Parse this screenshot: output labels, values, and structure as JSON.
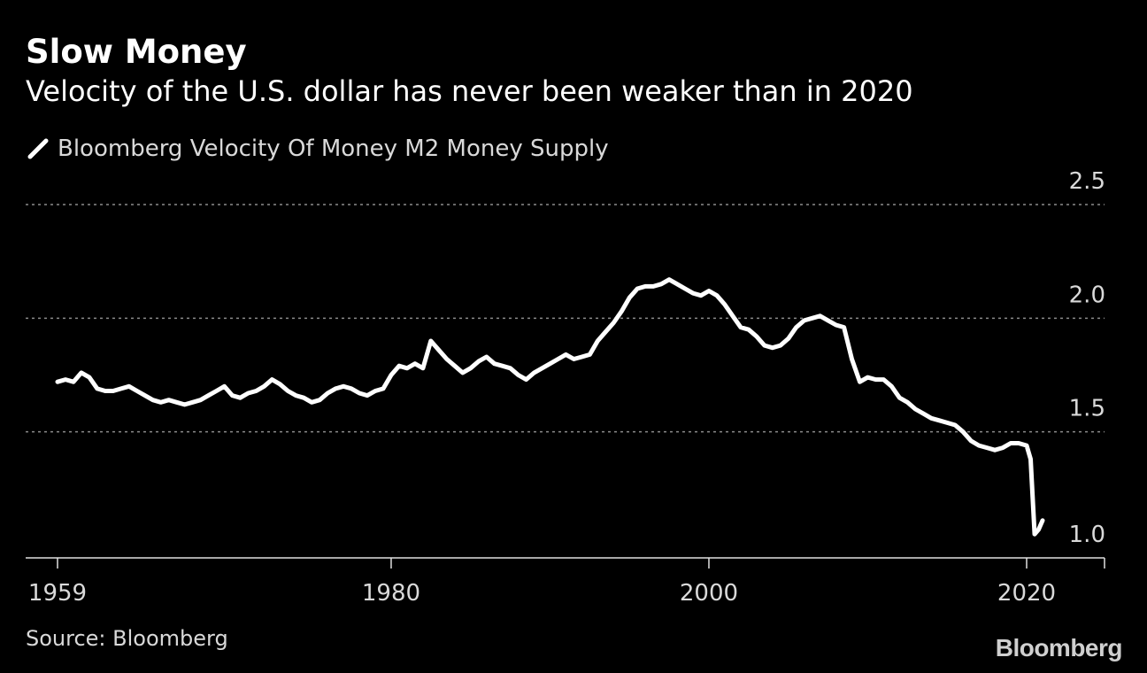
{
  "header": {
    "title": "Slow Money",
    "subtitle": "Velocity of the U.S. dollar has never been weaker than in 2020"
  },
  "legend": {
    "label": "Bloomberg Velocity Of Money M2 Money Supply"
  },
  "footer": {
    "source": "Source: Bloomberg",
    "brand": "Bloomberg"
  },
  "colors": {
    "background": "#000000",
    "line": "#ffffff",
    "grid": "#8c8c8c",
    "text": "#d9d9d9"
  },
  "chart_data": {
    "type": "line",
    "title": "Slow Money",
    "subtitle": "Velocity of the U.S. dollar has never been weaker than in 2020",
    "xlabel": "",
    "ylabel": "",
    "xlim": [
      1957,
      2025
    ],
    "ylim": [
      0.9,
      2.6
    ],
    "x_ticks": [
      {
        "value": 1959,
        "label": "1959"
      },
      {
        "value": 1980,
        "label": "1980"
      },
      {
        "value": 2000,
        "label": "2000"
      },
      {
        "value": 2020,
        "label": "2020"
      }
    ],
    "y_ticks": [
      {
        "value": 1.0,
        "label": "1.0"
      },
      {
        "value": 1.5,
        "label": "1.5"
      },
      {
        "value": 2.0,
        "label": "2.0"
      },
      {
        "value": 2.5,
        "label": "2.5"
      }
    ],
    "grid": "horizontal dotted",
    "legend_position": "top-left",
    "series": [
      {
        "name": "Bloomberg Velocity Of Money M2 Money Supply",
        "points": [
          [
            1959.0,
            1.72
          ],
          [
            1959.5,
            1.73
          ],
          [
            1960.0,
            1.72
          ],
          [
            1960.5,
            1.76
          ],
          [
            1961.0,
            1.74
          ],
          [
            1961.5,
            1.69
          ],
          [
            1962.0,
            1.68
          ],
          [
            1962.5,
            1.68
          ],
          [
            1963.0,
            1.69
          ],
          [
            1963.5,
            1.7
          ],
          [
            1964.0,
            1.68
          ],
          [
            1964.5,
            1.66
          ],
          [
            1965.0,
            1.64
          ],
          [
            1965.5,
            1.63
          ],
          [
            1966.0,
            1.64
          ],
          [
            1966.5,
            1.63
          ],
          [
            1967.0,
            1.62
          ],
          [
            1967.5,
            1.63
          ],
          [
            1968.0,
            1.64
          ],
          [
            1968.5,
            1.66
          ],
          [
            1969.0,
            1.68
          ],
          [
            1969.5,
            1.7
          ],
          [
            1970.0,
            1.66
          ],
          [
            1970.5,
            1.65
          ],
          [
            1971.0,
            1.67
          ],
          [
            1971.5,
            1.68
          ],
          [
            1972.0,
            1.7
          ],
          [
            1972.5,
            1.73
          ],
          [
            1973.0,
            1.71
          ],
          [
            1973.5,
            1.68
          ],
          [
            1974.0,
            1.66
          ],
          [
            1974.5,
            1.65
          ],
          [
            1975.0,
            1.63
          ],
          [
            1975.5,
            1.64
          ],
          [
            1976.0,
            1.67
          ],
          [
            1976.5,
            1.69
          ],
          [
            1977.0,
            1.7
          ],
          [
            1977.5,
            1.69
          ],
          [
            1978.0,
            1.67
          ],
          [
            1978.5,
            1.66
          ],
          [
            1979.0,
            1.68
          ],
          [
            1979.5,
            1.69
          ],
          [
            1980.0,
            1.75
          ],
          [
            1980.5,
            1.79
          ],
          [
            1981.0,
            1.78
          ],
          [
            1981.5,
            1.8
          ],
          [
            1982.0,
            1.78
          ],
          [
            1982.5,
            1.9
          ],
          [
            1983.0,
            1.86
          ],
          [
            1983.5,
            1.82
          ],
          [
            1984.0,
            1.79
          ],
          [
            1984.5,
            1.76
          ],
          [
            1985.0,
            1.78
          ],
          [
            1985.5,
            1.81
          ],
          [
            1986.0,
            1.83
          ],
          [
            1986.5,
            1.8
          ],
          [
            1987.0,
            1.79
          ],
          [
            1987.5,
            1.78
          ],
          [
            1988.0,
            1.75
          ],
          [
            1988.5,
            1.73
          ],
          [
            1989.0,
            1.76
          ],
          [
            1989.5,
            1.78
          ],
          [
            1990.0,
            1.8
          ],
          [
            1990.5,
            1.82
          ],
          [
            1991.0,
            1.84
          ],
          [
            1991.5,
            1.82
          ],
          [
            1992.0,
            1.83
          ],
          [
            1992.5,
            1.84
          ],
          [
            1993.0,
            1.9
          ],
          [
            1993.5,
            1.94
          ],
          [
            1994.0,
            1.98
          ],
          [
            1994.5,
            2.03
          ],
          [
            1995.0,
            2.09
          ],
          [
            1995.5,
            2.13
          ],
          [
            1996.0,
            2.14
          ],
          [
            1996.5,
            2.14
          ],
          [
            1997.0,
            2.15
          ],
          [
            1997.5,
            2.17
          ],
          [
            1998.0,
            2.15
          ],
          [
            1998.5,
            2.13
          ],
          [
            1999.0,
            2.11
          ],
          [
            1999.5,
            2.1
          ],
          [
            2000.0,
            2.12
          ],
          [
            2000.5,
            2.1
          ],
          [
            2001.0,
            2.06
          ],
          [
            2001.5,
            2.01
          ],
          [
            2002.0,
            1.96
          ],
          [
            2002.5,
            1.95
          ],
          [
            2003.0,
            1.92
          ],
          [
            2003.5,
            1.88
          ],
          [
            2004.0,
            1.87
          ],
          [
            2004.5,
            1.88
          ],
          [
            2005.0,
            1.91
          ],
          [
            2005.5,
            1.96
          ],
          [
            2006.0,
            1.99
          ],
          [
            2006.5,
            2.0
          ],
          [
            2007.0,
            2.01
          ],
          [
            2007.5,
            1.99
          ],
          [
            2008.0,
            1.97
          ],
          [
            2008.5,
            1.96
          ],
          [
            2009.0,
            1.82
          ],
          [
            2009.5,
            1.72
          ],
          [
            2010.0,
            1.74
          ],
          [
            2010.5,
            1.73
          ],
          [
            2011.0,
            1.73
          ],
          [
            2011.5,
            1.7
          ],
          [
            2012.0,
            1.65
          ],
          [
            2012.5,
            1.63
          ],
          [
            2013.0,
            1.6
          ],
          [
            2013.5,
            1.58
          ],
          [
            2014.0,
            1.56
          ],
          [
            2014.5,
            1.55
          ],
          [
            2015.0,
            1.54
          ],
          [
            2015.5,
            1.53
          ],
          [
            2016.0,
            1.5
          ],
          [
            2016.5,
            1.46
          ],
          [
            2017.0,
            1.44
          ],
          [
            2017.5,
            1.43
          ],
          [
            2018.0,
            1.42
          ],
          [
            2018.5,
            1.43
          ],
          [
            2019.0,
            1.45
          ],
          [
            2019.5,
            1.45
          ],
          [
            2020.0,
            1.44
          ],
          [
            2020.25,
            1.38
          ],
          [
            2020.5,
            1.05
          ],
          [
            2020.75,
            1.07
          ],
          [
            2021.0,
            1.11
          ]
        ]
      }
    ]
  }
}
